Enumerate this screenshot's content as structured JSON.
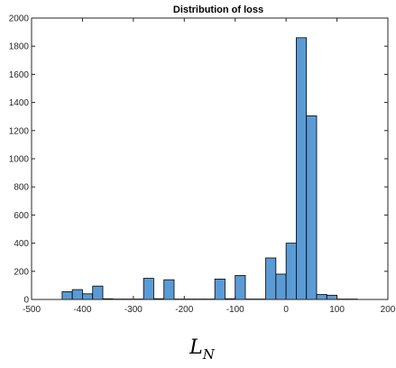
{
  "chart_data": {
    "type": "bar",
    "title": "Distribution of loss",
    "xlabel_main": "L",
    "xlabel_sub": "N",
    "xlim": [
      -500,
      200
    ],
    "ylim": [
      0,
      2000
    ],
    "xticks": [
      "-500",
      "-400",
      "-300",
      "-200",
      "-100",
      "0",
      "100",
      "200"
    ],
    "xtick_values": [
      -500,
      -400,
      -300,
      -200,
      -100,
      0,
      100,
      200
    ],
    "yticks": [
      "0",
      "200",
      "400",
      "600",
      "800",
      "1000",
      "1200",
      "1400",
      "1600",
      "1800",
      "2000"
    ],
    "ytick_values": [
      0,
      200,
      400,
      600,
      800,
      1000,
      1200,
      1400,
      1600,
      1800,
      2000
    ],
    "bin_edges": [
      -440,
      -420,
      -400,
      -380,
      -360,
      -340,
      -320,
      -300,
      -280,
      -260,
      -240,
      -220,
      -200,
      -180,
      -160,
      -140,
      -120,
      -100,
      -80,
      -60,
      -40,
      -20,
      0,
      20,
      40,
      60,
      80,
      100,
      120,
      140,
      160
    ],
    "values": [
      55,
      70,
      40,
      95,
      5,
      3,
      3,
      3,
      150,
      5,
      140,
      3,
      3,
      3,
      3,
      145,
      5,
      170,
      3,
      3,
      295,
      180,
      400,
      1860,
      1305,
      35,
      30,
      3,
      3,
      0
    ],
    "bar_color": "#5b9bd5",
    "edge_color": "#000000",
    "grid": false
  }
}
